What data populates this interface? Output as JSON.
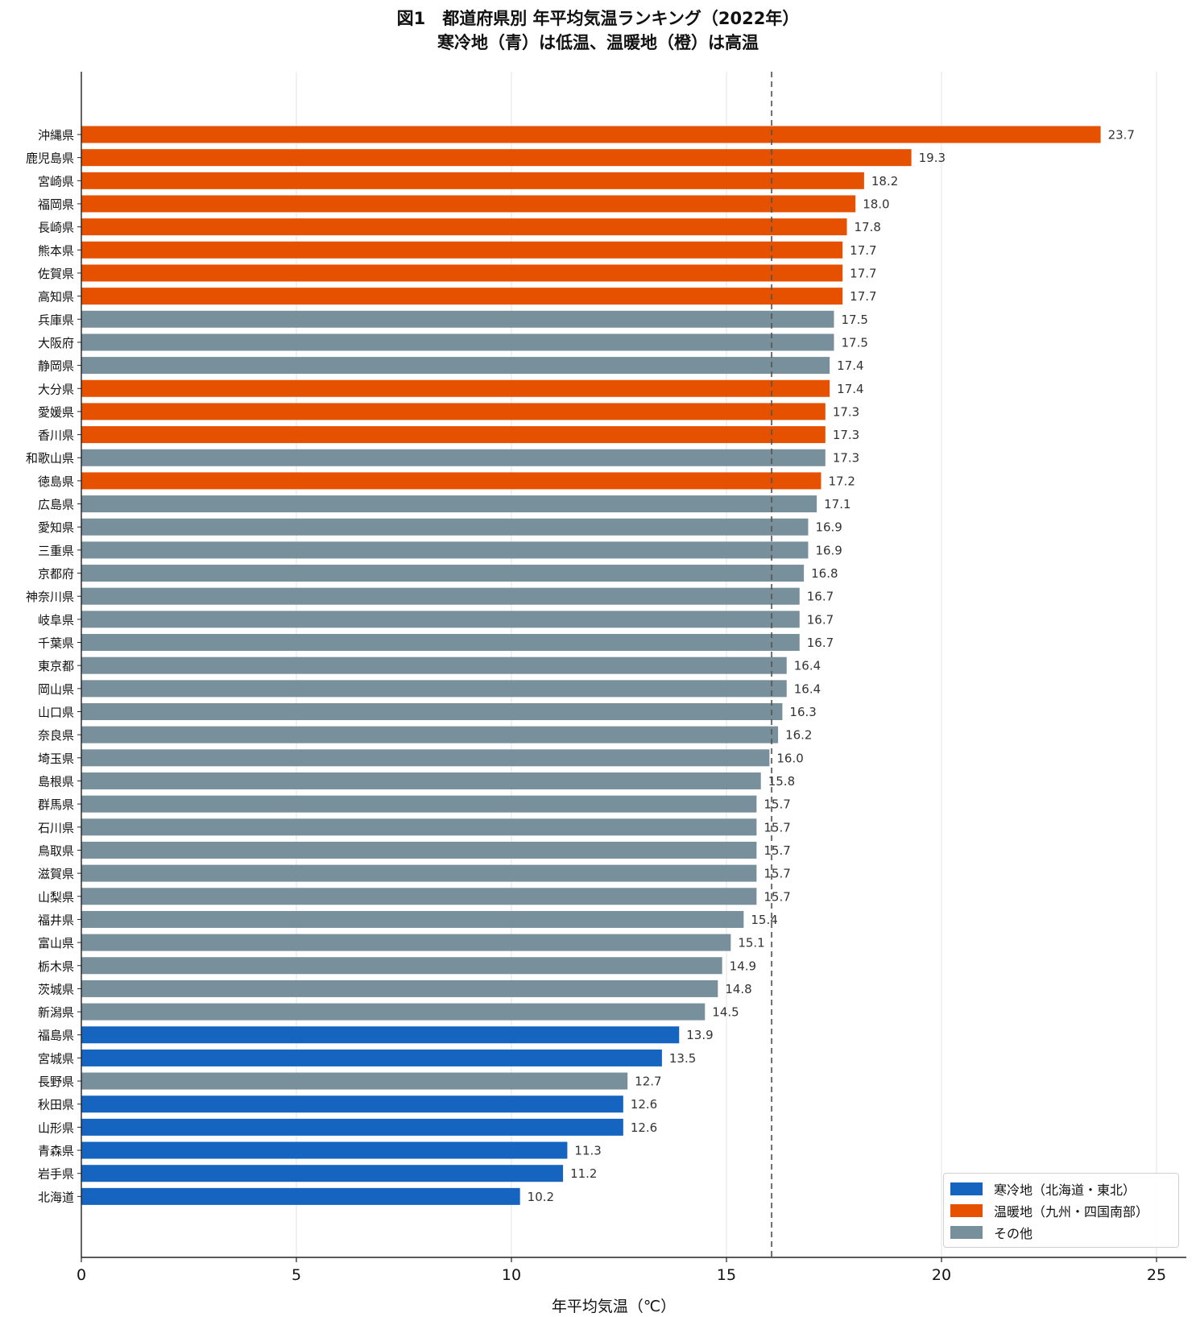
{
  "title_line1": "図1　都道府県別 年平均気温ランキング（2022年）",
  "title_line2": "寒冷地（青）は低温、温暖地（橙）は高温",
  "colors": {
    "cold": "#1565c0",
    "warm": "#e65100",
    "other": "#78909c"
  },
  "legend": [
    {
      "key": "cold",
      "label": "寒冷地（北海道・東北）"
    },
    {
      "key": "warm",
      "label": "温暖地（九州・四国南部）"
    },
    {
      "key": "other",
      "label": "その他"
    }
  ],
  "chart_data": {
    "type": "bar",
    "orientation": "horizontal",
    "xlabel": "年平均気温（℃）",
    "xlim": [
      0,
      25.7
    ],
    "xticks": [
      0,
      5,
      10,
      15,
      20,
      25
    ],
    "grid": "vertical",
    "reference_line": 16.05,
    "legend_position": "lower-right",
    "categories": [
      "沖縄県",
      "鹿児島県",
      "宮崎県",
      "福岡県",
      "長崎県",
      "熊本県",
      "佐賀県",
      "高知県",
      "兵庫県",
      "大阪府",
      "静岡県",
      "大分県",
      "愛媛県",
      "香川県",
      "和歌山県",
      "徳島県",
      "広島県",
      "愛知県",
      "三重県",
      "京都府",
      "神奈川県",
      "岐阜県",
      "千葉県",
      "東京都",
      "岡山県",
      "山口県",
      "奈良県",
      "埼玉県",
      "島根県",
      "群馬県",
      "石川県",
      "鳥取県",
      "滋賀県",
      "山梨県",
      "福井県",
      "富山県",
      "栃木県",
      "茨城県",
      "新潟県",
      "福島県",
      "宮城県",
      "長野県",
      "秋田県",
      "山形県",
      "青森県",
      "岩手県",
      "北海道"
    ],
    "values": [
      23.7,
      19.3,
      18.2,
      18.0,
      17.8,
      17.7,
      17.7,
      17.7,
      17.5,
      17.5,
      17.4,
      17.4,
      17.3,
      17.3,
      17.3,
      17.2,
      17.1,
      16.9,
      16.9,
      16.8,
      16.7,
      16.7,
      16.7,
      16.4,
      16.4,
      16.3,
      16.2,
      16.0,
      15.8,
      15.7,
      15.7,
      15.7,
      15.7,
      15.7,
      15.4,
      15.1,
      14.9,
      14.8,
      14.5,
      13.9,
      13.5,
      12.7,
      12.6,
      12.6,
      11.3,
      11.2,
      10.2
    ],
    "labels": [
      "23.7",
      "19.3",
      "18.2",
      "18.0",
      "17.8",
      "17.7",
      "17.7",
      "17.7",
      "17.5",
      "17.5",
      "17.4",
      "17.4",
      "17.3",
      "17.3",
      "17.3",
      "17.2",
      "17.1",
      "16.9",
      "16.9",
      "16.8",
      "16.7",
      "16.7",
      "16.7",
      "16.4",
      "16.4",
      "16.3",
      "16.2",
      "16.0",
      "15.8",
      "15.7",
      "15.7",
      "15.7",
      "15.7",
      "15.7",
      "15.4",
      "15.1",
      "14.9",
      "14.8",
      "14.5",
      "13.9",
      "13.5",
      "12.7",
      "12.6",
      "12.6",
      "11.3",
      "11.2",
      "10.2"
    ],
    "groups": [
      "warm",
      "warm",
      "warm",
      "warm",
      "warm",
      "warm",
      "warm",
      "warm",
      "other",
      "other",
      "other",
      "warm",
      "warm",
      "warm",
      "other",
      "warm",
      "other",
      "other",
      "other",
      "other",
      "other",
      "other",
      "other",
      "other",
      "other",
      "other",
      "other",
      "other",
      "other",
      "other",
      "other",
      "other",
      "other",
      "other",
      "other",
      "other",
      "other",
      "other",
      "other",
      "cold",
      "cold",
      "other",
      "cold",
      "cold",
      "cold",
      "cold",
      "cold"
    ]
  }
}
